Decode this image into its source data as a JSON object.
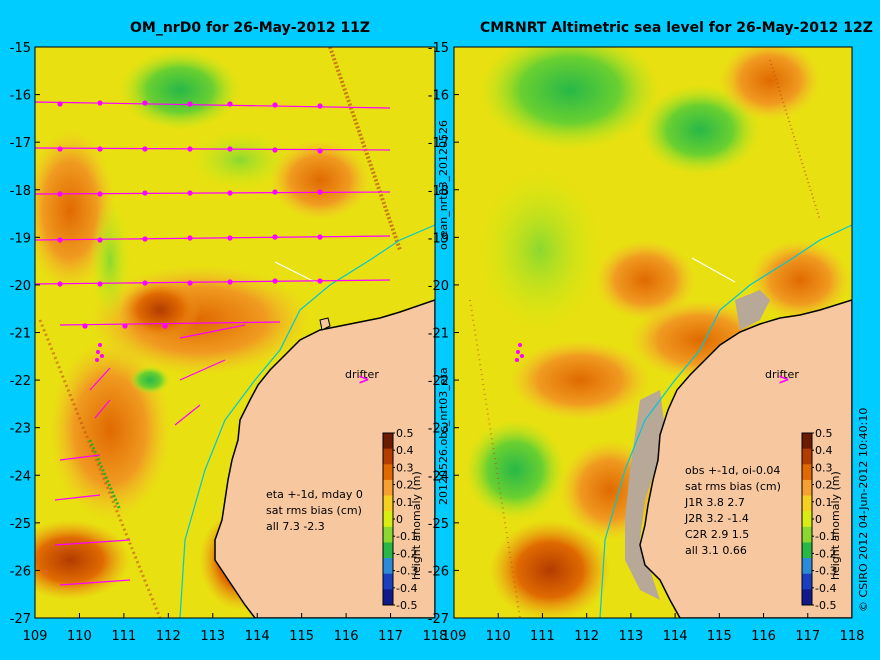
{
  "left_panel": {
    "title": "OM_nrD0 for 26-May-2012 11Z",
    "stats": [
      "eta +-1d, mday 0",
      "sat rms bias (cm)",
      "all 7.3 -2.3"
    ],
    "drifter_label": "drifter",
    "colorbar_label": "height anomaly (m)"
  },
  "right_panel": {
    "title": "CMRNRT Altimetric sea level  for 26-May-2012 12Z",
    "stats": [
      "obs +-1d, oi-0.04",
      "sat rms bias (cm)",
      "J1R   3.8 2.7",
      "J2R   3.2 -1.4",
      "C2R   2.9 1.5",
      "all 3.1 0.66"
    ],
    "drifter_label": "drifter",
    "colorbar_label": "height anomaly (m)"
  },
  "side_labels": {
    "top": "ocean_nrt03_20120526",
    "bottom": "20120526.obs_nrt03_eta",
    "right": "© CSIRO 2012   04-Jun-2012 10:40:10"
  },
  "axes": {
    "lat_ticks": [
      "-15",
      "-16",
      "-17",
      "-18",
      "-19",
      "-20",
      "-21",
      "-22",
      "-23",
      "-24",
      "-25",
      "-26",
      "-27"
    ],
    "lon_ticks": [
      "109",
      "110",
      "111",
      "112",
      "113",
      "114",
      "115",
      "116",
      "117",
      "118"
    ]
  },
  "colorbar": {
    "ticks": [
      "0.5",
      "0.4",
      "0.3",
      "0.2",
      "0.1",
      "0",
      "-0.1",
      "-0.2",
      "-0.3",
      "-0.4",
      "-0.5"
    ],
    "colors": [
      "#6b1b00",
      "#b33c00",
      "#e06a00",
      "#f5a030",
      "#f5d020",
      "#d8ee10",
      "#8ad830",
      "#28b848",
      "#2a8cd8",
      "#1a40c0",
      "#101a8a"
    ]
  },
  "colors": {
    "land": "#f7c8a0",
    "vector": "#ff00ff",
    "coast_line": "#00c8d0"
  }
}
